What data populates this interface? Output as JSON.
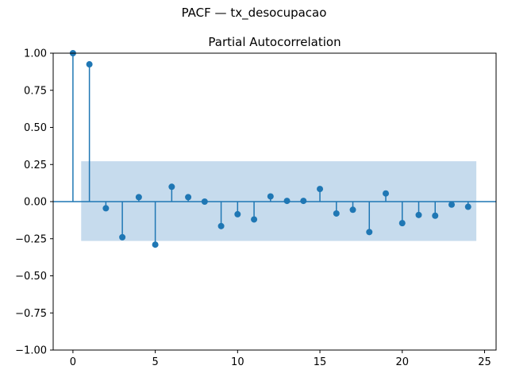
{
  "figure": {
    "suptitle": "PACF — tx_desocupacao"
  },
  "chart_data": {
    "type": "stem",
    "title": "Partial Autocorrelation",
    "xlabel": "",
    "ylabel": "",
    "xlim": [
      -1.2,
      25.7
    ],
    "ylim": [
      -1.0,
      1.0
    ],
    "x_ticks": [
      0,
      5,
      10,
      15,
      20,
      25
    ],
    "y_ticks": [
      -1.0,
      -0.75,
      -0.5,
      -0.25,
      0.0,
      0.25,
      0.5,
      0.75,
      1.0
    ],
    "y_tick_labels": [
      "−1.00",
      "−0.75",
      "−0.50",
      "−0.25",
      "0.00",
      "0.25",
      "0.50",
      "0.75",
      "1.00"
    ],
    "grid": false,
    "colors": {
      "stem": "#1f77b4",
      "confidence_band": "#c6dbed"
    },
    "confidence_interval": {
      "lower": -0.265,
      "upper": 0.272,
      "x_start": 0.5,
      "x_end": 24.5
    },
    "lags": [
      0,
      1,
      2,
      3,
      4,
      5,
      6,
      7,
      8,
      9,
      10,
      11,
      12,
      13,
      14,
      15,
      16,
      17,
      18,
      19,
      20,
      21,
      22,
      23,
      24
    ],
    "values": [
      1.0,
      0.925,
      -0.045,
      -0.24,
      0.03,
      -0.29,
      0.1,
      0.03,
      0.0,
      -0.165,
      -0.085,
      -0.12,
      0.035,
      0.005,
      0.005,
      0.085,
      -0.08,
      -0.055,
      -0.205,
      0.055,
      -0.145,
      -0.09,
      -0.095,
      -0.02,
      -0.035
    ]
  }
}
